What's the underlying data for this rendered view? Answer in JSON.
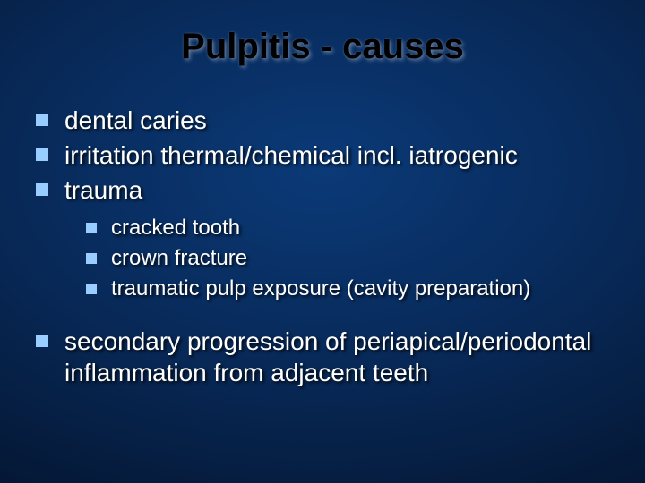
{
  "slide": {
    "title": "Pulpitis - causes",
    "title_color": "#000000",
    "title_shadow_color": "#ffffff",
    "title_fontsize": 40,
    "background_gradient": {
      "inner": "#0b3a78",
      "mid": "#082a5a",
      "outer": "#041530",
      "edge": "#020a1c"
    },
    "bullet_color": "#99ccff",
    "text_color": "#ffffff",
    "text_shadow_color": "#000000",
    "level1_fontsize": 28,
    "level2_fontsize": 24,
    "items": [
      {
        "text": "dental caries"
      },
      {
        "text": "irritation thermal/chemical incl. iatrogenic"
      },
      {
        "text": "trauma"
      }
    ],
    "subitems": [
      {
        "text": "cracked tooth"
      },
      {
        "text": "crown fracture"
      },
      {
        "text": "traumatic pulp exposure (cavity preparation)"
      }
    ],
    "items_after": [
      {
        "text": "secondary progression of periapical/periodontal inflammation from adjacent teeth"
      }
    ]
  }
}
